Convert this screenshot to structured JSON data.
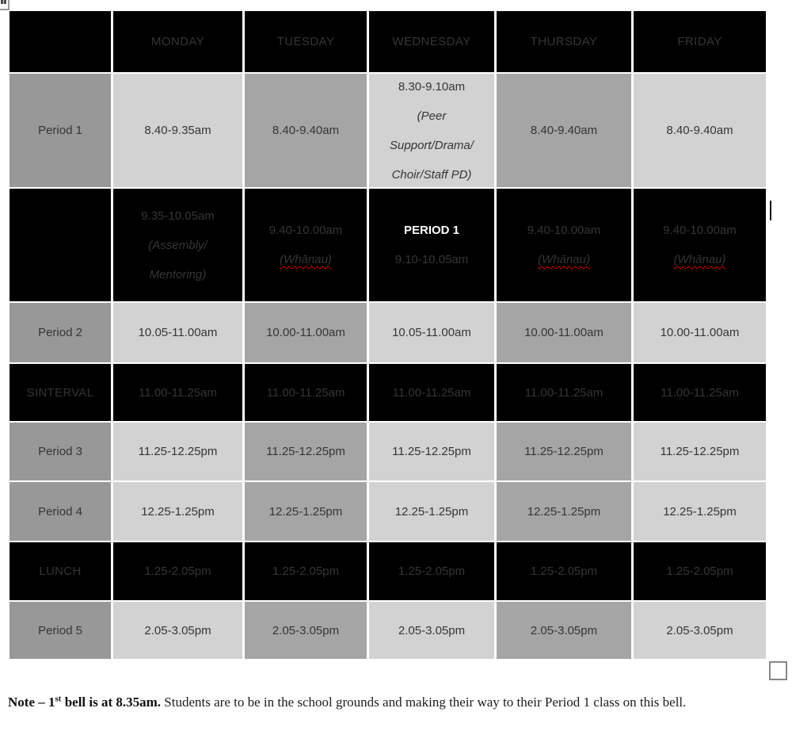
{
  "timetable": {
    "columns": [
      "",
      "MONDAY",
      "TUESDAY",
      "WEDNESDAY",
      "THURSDAY",
      "FRIDAY"
    ],
    "rows": [
      {
        "label": "Period 1",
        "type": "gray",
        "cells": [
          [
            {
              "text": "8.40-9.35am"
            }
          ],
          [
            {
              "text": "8.40-9.40am"
            }
          ],
          [
            {
              "text": "8.30-9.10am"
            },
            {
              "text": "(Peer",
              "italic": true
            },
            {
              "text": "Support/Drama/",
              "italic": true
            },
            {
              "text": "Choir/Staff PD)",
              "italic": true
            }
          ],
          [
            {
              "text": "8.40-9.40am"
            }
          ],
          [
            {
              "text": "8.40-9.40am"
            }
          ]
        ]
      },
      {
        "label": "",
        "type": "black",
        "cells": [
          [
            {
              "text": "9.35-10.05am"
            },
            {
              "text": "(Assembly/",
              "italic": true
            },
            {
              "text": "Mentoring)",
              "italic": true
            }
          ],
          [
            {
              "text": "9.40-10.00am"
            },
            {
              "text": "(Whānau)",
              "italic": true,
              "squiggle": true
            }
          ],
          [
            {
              "text": "PERIOD 1",
              "bold": true
            },
            {
              "text": "9.10-10.05am"
            }
          ],
          [
            {
              "text": "9.40-10.00am"
            },
            {
              "text": "(Whānau)",
              "italic": true,
              "squiggle": true
            }
          ],
          [
            {
              "text": "9.40-10.00am"
            },
            {
              "text": "(Whānau)",
              "italic": true,
              "squiggle": true
            }
          ]
        ]
      },
      {
        "label": "Period 2",
        "type": "gray",
        "cells": [
          [
            {
              "text": "10.05-11.00am"
            }
          ],
          [
            {
              "text": "10.00-11.00am"
            }
          ],
          [
            {
              "text": "10.05-11.00am"
            }
          ],
          [
            {
              "text": "10.00-11.00am"
            }
          ],
          [
            {
              "text": "10.00-11.00am"
            }
          ]
        ]
      },
      {
        "label": "SINTERVAL",
        "type": "black",
        "cells": [
          [
            {
              "text": "11.00-11.25am"
            }
          ],
          [
            {
              "text": "11.00-11.25am"
            }
          ],
          [
            {
              "text": "11.00-11.25am"
            }
          ],
          [
            {
              "text": "11.00-11.25am"
            }
          ],
          [
            {
              "text": "11.00-11.25am"
            }
          ]
        ]
      },
      {
        "label": "Period 3",
        "type": "gray",
        "cells": [
          [
            {
              "text": "11.25-12.25pm"
            }
          ],
          [
            {
              "text": "11.25-12.25pm"
            }
          ],
          [
            {
              "text": "11.25-12.25pm"
            }
          ],
          [
            {
              "text": "11.25-12.25pm"
            }
          ],
          [
            {
              "text": "11.25-12.25pm"
            }
          ]
        ]
      },
      {
        "label": "Period 4",
        "type": "gray",
        "cells": [
          [
            {
              "text": "12.25-1.25pm"
            }
          ],
          [
            {
              "text": "12.25-1.25pm"
            }
          ],
          [
            {
              "text": "12.25-1.25pm"
            }
          ],
          [
            {
              "text": "12.25-1.25pm"
            }
          ],
          [
            {
              "text": "12.25-1.25pm"
            }
          ]
        ]
      },
      {
        "label": "LUNCH",
        "type": "black",
        "cells": [
          [
            {
              "text": "1.25-2.05pm"
            }
          ],
          [
            {
              "text": "1.25-2.05pm"
            }
          ],
          [
            {
              "text": "1.25-2.05pm"
            }
          ],
          [
            {
              "text": "1.25-2.05pm"
            }
          ],
          [
            {
              "text": "1.25-2.05pm"
            }
          ]
        ]
      },
      {
        "label": "Period 5",
        "type": "gray",
        "cells": [
          [
            {
              "text": "2.05-3.05pm"
            }
          ],
          [
            {
              "text": "2.05-3.05pm"
            }
          ],
          [
            {
              "text": "2.05-3.05pm"
            }
          ],
          [
            {
              "text": "2.05-3.05pm"
            }
          ],
          [
            {
              "text": "2.05-3.05pm"
            }
          ]
        ]
      }
    ]
  },
  "document": {
    "note": {
      "bold_prefix": "Note – 1",
      "superscript": "st",
      "bold_suffix": " bell is at 8.35am.",
      "body": " Students are to be in the school grounds and making their way to their Period 1 class on this bell."
    }
  },
  "colors": {
    "cell_black": "#000000",
    "cell_light": "#d2d2d2",
    "cell_medium": "#a5a5a5",
    "row_label_gray": "#989898",
    "spellcheck_red": "#cc0000"
  }
}
